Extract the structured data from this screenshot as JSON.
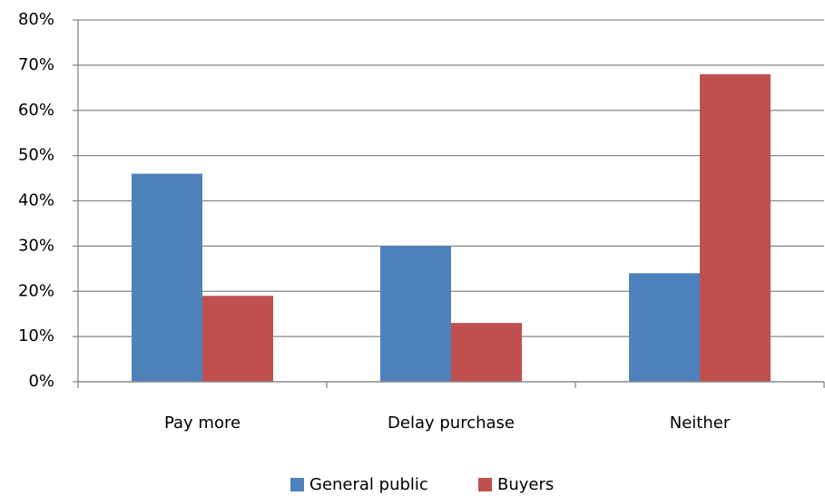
{
  "chart_data": {
    "type": "bar",
    "categories": [
      "Pay more",
      "Delay purchase",
      "Neither"
    ],
    "series": [
      {
        "name": "General public",
        "color": "#4f81bd",
        "values": [
          46,
          30,
          24
        ]
      },
      {
        "name": "Buyers",
        "color": "#c0504d",
        "values": [
          19,
          13,
          68
        ]
      }
    ],
    "ylim": [
      0,
      80
    ],
    "yticks": [
      {
        "value": 0,
        "label": "0%"
      },
      {
        "value": 10,
        "label": "10%"
      },
      {
        "value": 20,
        "label": "20%"
      },
      {
        "value": 30,
        "label": "30%"
      },
      {
        "value": 40,
        "label": "40%"
      },
      {
        "value": 50,
        "label": "50%"
      },
      {
        "value": 60,
        "label": "60%"
      },
      {
        "value": 70,
        "label": "70%"
      },
      {
        "value": 80,
        "label": "80%"
      }
    ],
    "grid": true,
    "legend": "bottom"
  }
}
